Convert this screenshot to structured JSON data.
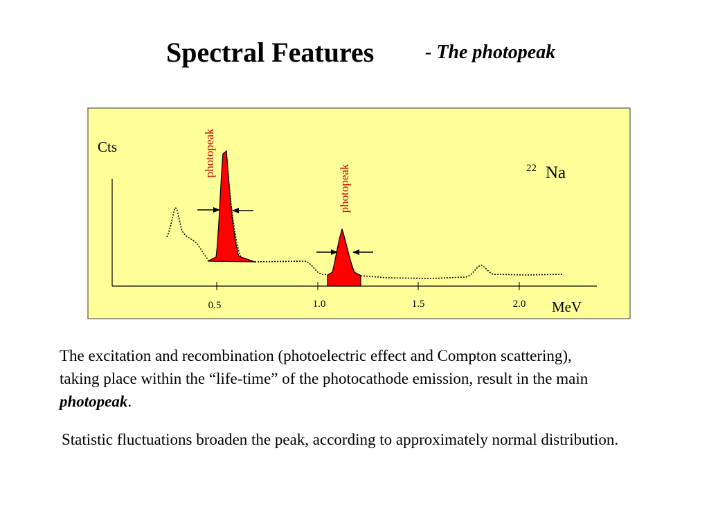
{
  "header": {
    "title": "Spectral Features",
    "subtitle": "- The photopeak"
  },
  "diagram": {
    "background_color": "#ffff99",
    "peak_color": "#ff0000",
    "y_axis_label": "Cts",
    "x_axis_label": "MeV",
    "x_ticks": [
      "0.5",
      "1.0",
      "1.5",
      "2.0"
    ],
    "isotope": {
      "mass_number": "22",
      "symbol": "Na"
    },
    "peak_labels": [
      "photopeak",
      "photopeak"
    ]
  },
  "body": {
    "paragraph1_before": "The excitation and recombination (photoelectric effect and Compton scattering), taking place within the “life-time” of the photocathode emission, result in the main ",
    "paragraph1_emphasis": "photopeak",
    "paragraph1_after": ".",
    "paragraph2": "Statistic fluctuations broaden the peak, according to approximately normal distribution."
  }
}
